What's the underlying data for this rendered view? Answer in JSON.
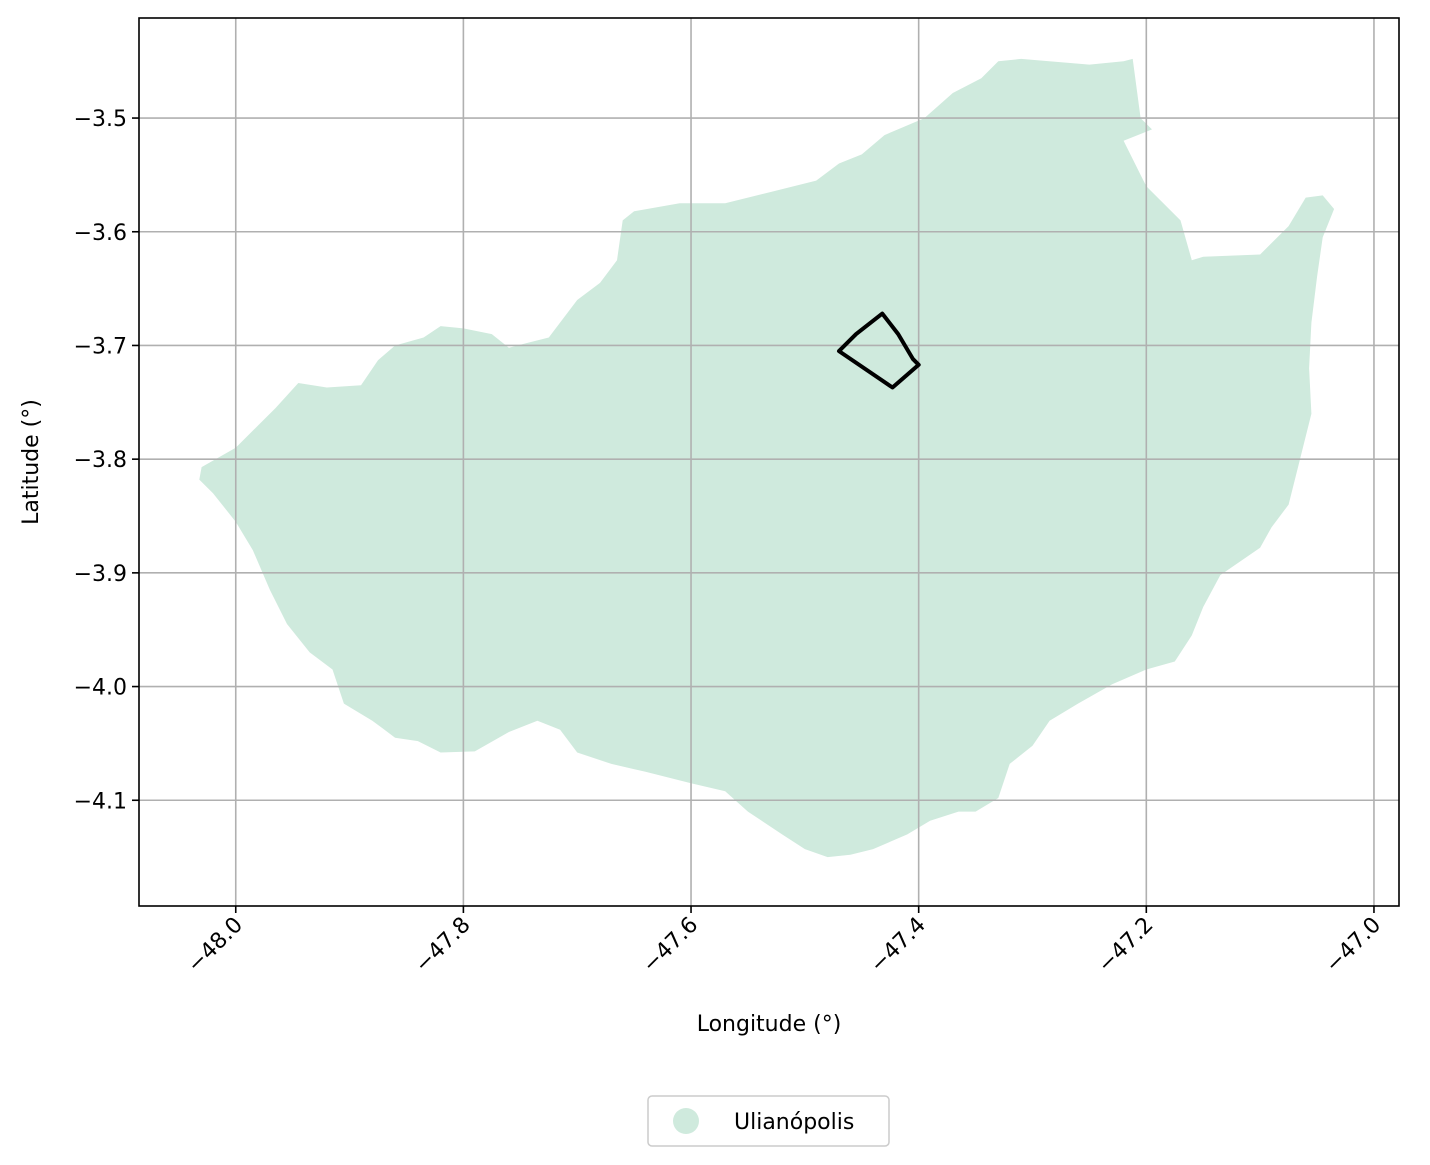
{
  "map": {
    "xlabel": "Longitude (°)",
    "ylabel": "Latitude (°)",
    "xlim": [
      -48.085,
      -46.978
    ],
    "ylim": [
      -4.193,
      -3.412
    ],
    "x_ticks": [
      -48.0,
      -47.8,
      -47.6,
      -47.4,
      -47.2,
      -47.0
    ],
    "x_tick_labels": [
      "−48.0",
      "−47.8",
      "−47.6",
      "−47.4",
      "−47.2",
      "−47.0"
    ],
    "y_ticks": [
      -3.5,
      -3.6,
      -3.7,
      -3.8,
      -3.9,
      -4.0,
      -4.1
    ],
    "y_tick_labels": [
      "−3.5",
      "−3.6",
      "−3.7",
      "−3.8",
      "−3.9",
      "−4.0",
      "−4.1"
    ],
    "grid": true,
    "legend": {
      "label": "Ulianópolis",
      "color": "#cfeadd",
      "placement": "bottom-center"
    },
    "colors": {
      "region_fill": "#cfeadd",
      "outline": "#000000",
      "grid": "#b0b0b0"
    },
    "region": {
      "name": "Ulianópolis",
      "outline": [
        [
          -48.03,
          -3.807
        ],
        [
          -48.0,
          -3.79
        ],
        [
          -47.98,
          -3.77
        ],
        [
          -47.965,
          -3.755
        ],
        [
          -47.945,
          -3.733
        ],
        [
          -47.92,
          -3.737
        ],
        [
          -47.89,
          -3.735
        ],
        [
          -47.875,
          -3.713
        ],
        [
          -47.86,
          -3.7
        ],
        [
          -47.835,
          -3.693
        ],
        [
          -47.82,
          -3.683
        ],
        [
          -47.8,
          -3.685
        ],
        [
          -47.775,
          -3.69
        ],
        [
          -47.76,
          -3.702
        ],
        [
          -47.745,
          -3.698
        ],
        [
          -47.725,
          -3.693
        ],
        [
          -47.7,
          -3.66
        ],
        [
          -47.68,
          -3.645
        ],
        [
          -47.665,
          -3.625
        ],
        [
          -47.66,
          -3.59
        ],
        [
          -47.65,
          -3.582
        ],
        [
          -47.61,
          -3.575
        ],
        [
          -47.57,
          -3.575
        ],
        [
          -47.53,
          -3.565
        ],
        [
          -47.49,
          -3.555
        ],
        [
          -47.47,
          -3.54
        ],
        [
          -47.45,
          -3.532
        ],
        [
          -47.43,
          -3.515
        ],
        [
          -47.395,
          -3.5
        ],
        [
          -47.37,
          -3.478
        ],
        [
          -47.345,
          -3.465
        ],
        [
          -47.33,
          -3.45
        ],
        [
          -47.31,
          -3.448
        ],
        [
          -47.25,
          -3.453
        ],
        [
          -47.22,
          -3.45
        ],
        [
          -47.212,
          -3.448
        ],
        [
          -47.205,
          -3.5
        ],
        [
          -47.195,
          -3.51
        ],
        [
          -47.22,
          -3.52
        ],
        [
          -47.2,
          -3.56
        ],
        [
          -47.17,
          -3.59
        ],
        [
          -47.16,
          -3.625
        ],
        [
          -47.15,
          -3.622
        ],
        [
          -47.1,
          -3.62
        ],
        [
          -47.075,
          -3.595
        ],
        [
          -47.06,
          -3.57
        ],
        [
          -47.045,
          -3.568
        ],
        [
          -47.035,
          -3.58
        ],
        [
          -47.045,
          -3.605
        ],
        [
          -47.05,
          -3.64
        ],
        [
          -47.055,
          -3.68
        ],
        [
          -47.057,
          -3.72
        ],
        [
          -47.055,
          -3.76
        ],
        [
          -47.065,
          -3.8
        ],
        [
          -47.075,
          -3.84
        ],
        [
          -47.09,
          -3.86
        ],
        [
          -47.1,
          -3.878
        ],
        [
          -47.135,
          -3.902
        ],
        [
          -47.15,
          -3.93
        ],
        [
          -47.16,
          -3.955
        ],
        [
          -47.175,
          -3.978
        ],
        [
          -47.2,
          -3.985
        ],
        [
          -47.23,
          -3.998
        ],
        [
          -47.26,
          -4.015
        ],
        [
          -47.285,
          -4.03
        ],
        [
          -47.3,
          -4.052
        ],
        [
          -47.32,
          -4.068
        ],
        [
          -47.33,
          -4.098
        ],
        [
          -47.35,
          -4.11
        ],
        [
          -47.365,
          -4.11
        ],
        [
          -47.39,
          -4.118
        ],
        [
          -47.41,
          -4.13
        ],
        [
          -47.44,
          -4.143
        ],
        [
          -47.46,
          -4.148
        ],
        [
          -47.48,
          -4.15
        ],
        [
          -47.5,
          -4.143
        ],
        [
          -47.52,
          -4.13
        ],
        [
          -47.55,
          -4.11
        ],
        [
          -47.57,
          -4.092
        ],
        [
          -47.6,
          -4.085
        ],
        [
          -47.64,
          -4.075
        ],
        [
          -47.67,
          -4.068
        ],
        [
          -47.7,
          -4.058
        ],
        [
          -47.715,
          -4.038
        ],
        [
          -47.735,
          -4.03
        ],
        [
          -47.76,
          -4.04
        ],
        [
          -47.79,
          -4.057
        ],
        [
          -47.82,
          -4.058
        ],
        [
          -47.84,
          -4.048
        ],
        [
          -47.86,
          -4.045
        ],
        [
          -47.88,
          -4.03
        ],
        [
          -47.905,
          -4.015
        ],
        [
          -47.915,
          -3.985
        ],
        [
          -47.935,
          -3.97
        ],
        [
          -47.955,
          -3.945
        ],
        [
          -47.97,
          -3.915
        ],
        [
          -47.985,
          -3.88
        ],
        [
          -48.0,
          -3.855
        ],
        [
          -48.02,
          -3.83
        ],
        [
          -48.032,
          -3.818
        ]
      ]
    },
    "feature_outline": [
      [
        -47.432,
        -3.672
      ],
      [
        -47.418,
        -3.69
      ],
      [
        -47.405,
        -3.712
      ],
      [
        -47.4,
        -3.717
      ],
      [
        -47.423,
        -3.737
      ],
      [
        -47.47,
        -3.705
      ],
      [
        -47.455,
        -3.69
      ],
      [
        -47.432,
        -3.672
      ]
    ]
  }
}
